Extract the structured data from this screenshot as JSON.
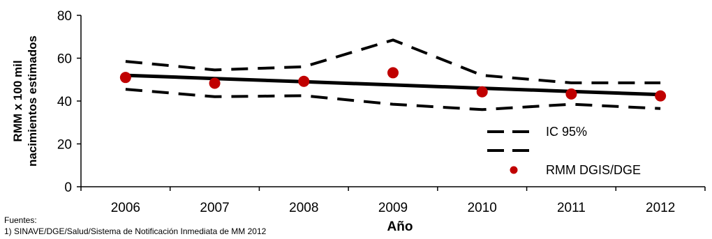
{
  "chart_data": {
    "type": "line",
    "x": [
      "2006",
      "2007",
      "2008",
      "2009",
      "2010",
      "2011",
      "2012"
    ],
    "ylabel_line1": "RMM x 100 mil",
    "ylabel_line2": "nacimientos estimados",
    "xlabel": "Año",
    "ylim": [
      0,
      80
    ],
    "yticks": [
      "0",
      "20",
      "40",
      "60",
      "80"
    ],
    "grid": false,
    "legend_position": "bottom-right",
    "series": [
      {
        "name": "IC 95%",
        "role": "ci_upper",
        "style": "dashed",
        "color": "#000000",
        "values": [
          58.5,
          54.5,
          56,
          68.5,
          52,
          48.5,
          48.5
        ]
      },
      {
        "name": "",
        "role": "ci_lower",
        "style": "dashed",
        "color": "#000000",
        "values": [
          45.5,
          42,
          42.5,
          38.5,
          36,
          38.5,
          36.5
        ]
      },
      {
        "name": "",
        "role": "trend",
        "style": "solid",
        "color": "#000000",
        "values": [
          52,
          50.5,
          49,
          47.5,
          46,
          44.5,
          43
        ]
      },
      {
        "name": "RMM DGIS/DGE",
        "role": "points",
        "style": "marker",
        "color": "#c00000",
        "values": [
          51,
          48.3,
          49.2,
          53.2,
          44.3,
          43.3,
          42.4
        ]
      }
    ]
  },
  "footnote": {
    "heading": "Fuentes:",
    "line1": "1) SINAVE/DGE/Salud/Sistema de Notificación Inmediata de MM 2012"
  }
}
